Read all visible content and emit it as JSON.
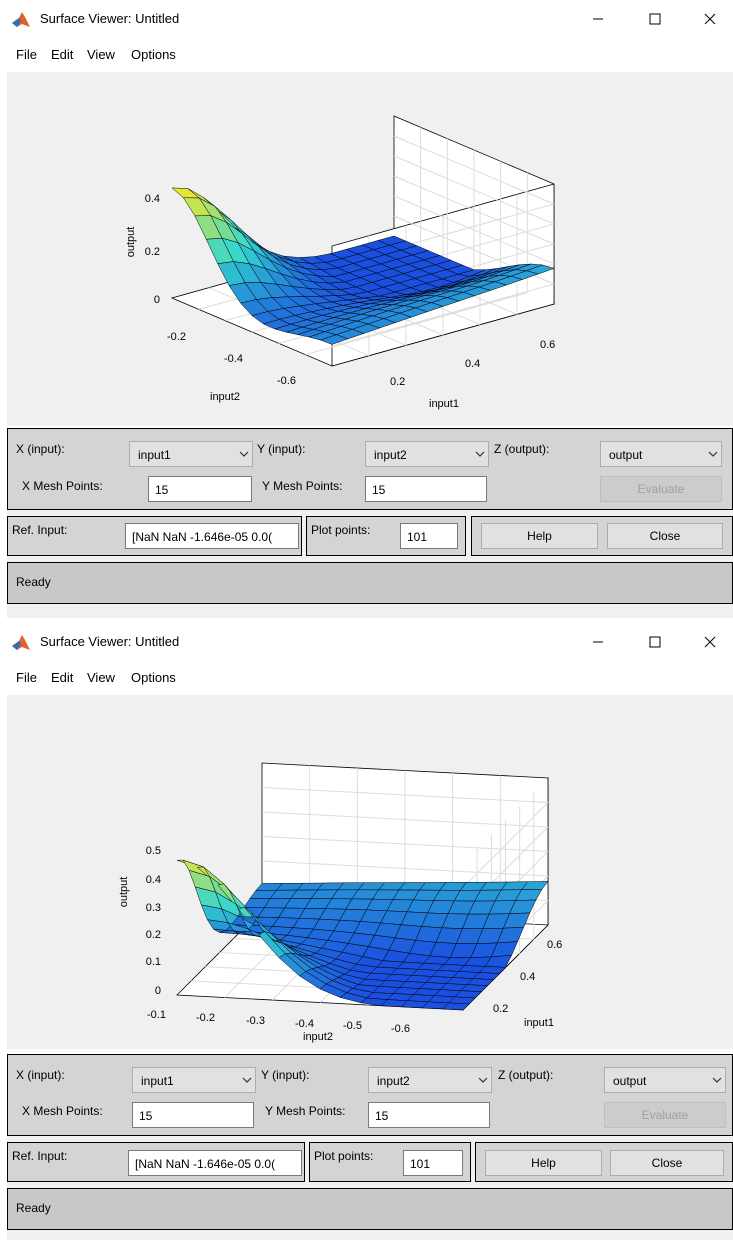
{
  "windows": [
    {
      "title": "Surface Viewer: Untitled",
      "menu": [
        "File",
        "Edit",
        "View",
        "Options"
      ],
      "plot": {
        "z_label": "output",
        "x_label": "input1",
        "y_label": "input2",
        "z_ticks": [
          "0",
          "0.2",
          "0.4"
        ],
        "x_ticks": [
          "0.2",
          "0.4",
          "0.6"
        ],
        "y_ticks": [
          "-0.2",
          "-0.4",
          "-0.6"
        ]
      },
      "controls": {
        "x_input_label": "X (input):",
        "x_input_value": "input1",
        "y_input_label": "Y (input):",
        "y_input_value": "input2",
        "z_output_label": "Z (output):",
        "z_output_value": "output",
        "x_mesh_label": "X Mesh Points:",
        "x_mesh_value": "15",
        "y_mesh_label": "Y Mesh Points:",
        "y_mesh_value": "15",
        "evaluate_label": "Evaluate",
        "ref_input_label": "Ref. Input:",
        "ref_input_value": "[NaN NaN -1.646e-05 0.0(",
        "plot_points_label": "Plot points:",
        "plot_points_value": "101",
        "help_label": "Help",
        "close_label": "Close",
        "status": "Ready"
      }
    },
    {
      "title": "Surface Viewer: Untitled",
      "menu": [
        "File",
        "Edit",
        "View",
        "Options"
      ],
      "plot": {
        "z_label": "output",
        "x_label": "input1",
        "y_label": "input2",
        "z_ticks": [
          "0",
          "0.1",
          "0.2",
          "0.3",
          "0.4",
          "0.5"
        ],
        "x_ticks": [
          "0.2",
          "0.4",
          "0.6"
        ],
        "y_ticks": [
          "-0.1",
          "-0.2",
          "-0.3",
          "-0.4",
          "-0.5",
          "-0.6"
        ]
      },
      "controls": {
        "x_input_label": "X (input):",
        "x_input_value": "input1",
        "y_input_label": "Y (input):",
        "y_input_value": "input2",
        "z_output_label": "Z (output):",
        "z_output_value": "output",
        "x_mesh_label": "X Mesh Points:",
        "x_mesh_value": "15",
        "y_mesh_label": "Y Mesh Points:",
        "y_mesh_value": "15",
        "evaluate_label": "Evaluate",
        "ref_input_label": "Ref. Input:",
        "ref_input_value": "[NaN NaN -1.646e-05 0.0(",
        "plot_points_label": "Plot points:",
        "plot_points_value": "101",
        "help_label": "Help",
        "close_label": "Close",
        "status": "Ready"
      }
    }
  ],
  "icons": {
    "app": "matlab-logo-icon",
    "minimize": "minimize-icon",
    "maximize": "maximize-icon",
    "close": "close-icon",
    "dropdown": "chevron-down-icon"
  },
  "colors": {
    "surface_high": "#f5e829",
    "surface_mid": "#33d6d0",
    "surface_low": "#1a4fe0",
    "panel": "#d4d4d4",
    "plot_bg": "#f0f0f0"
  }
}
